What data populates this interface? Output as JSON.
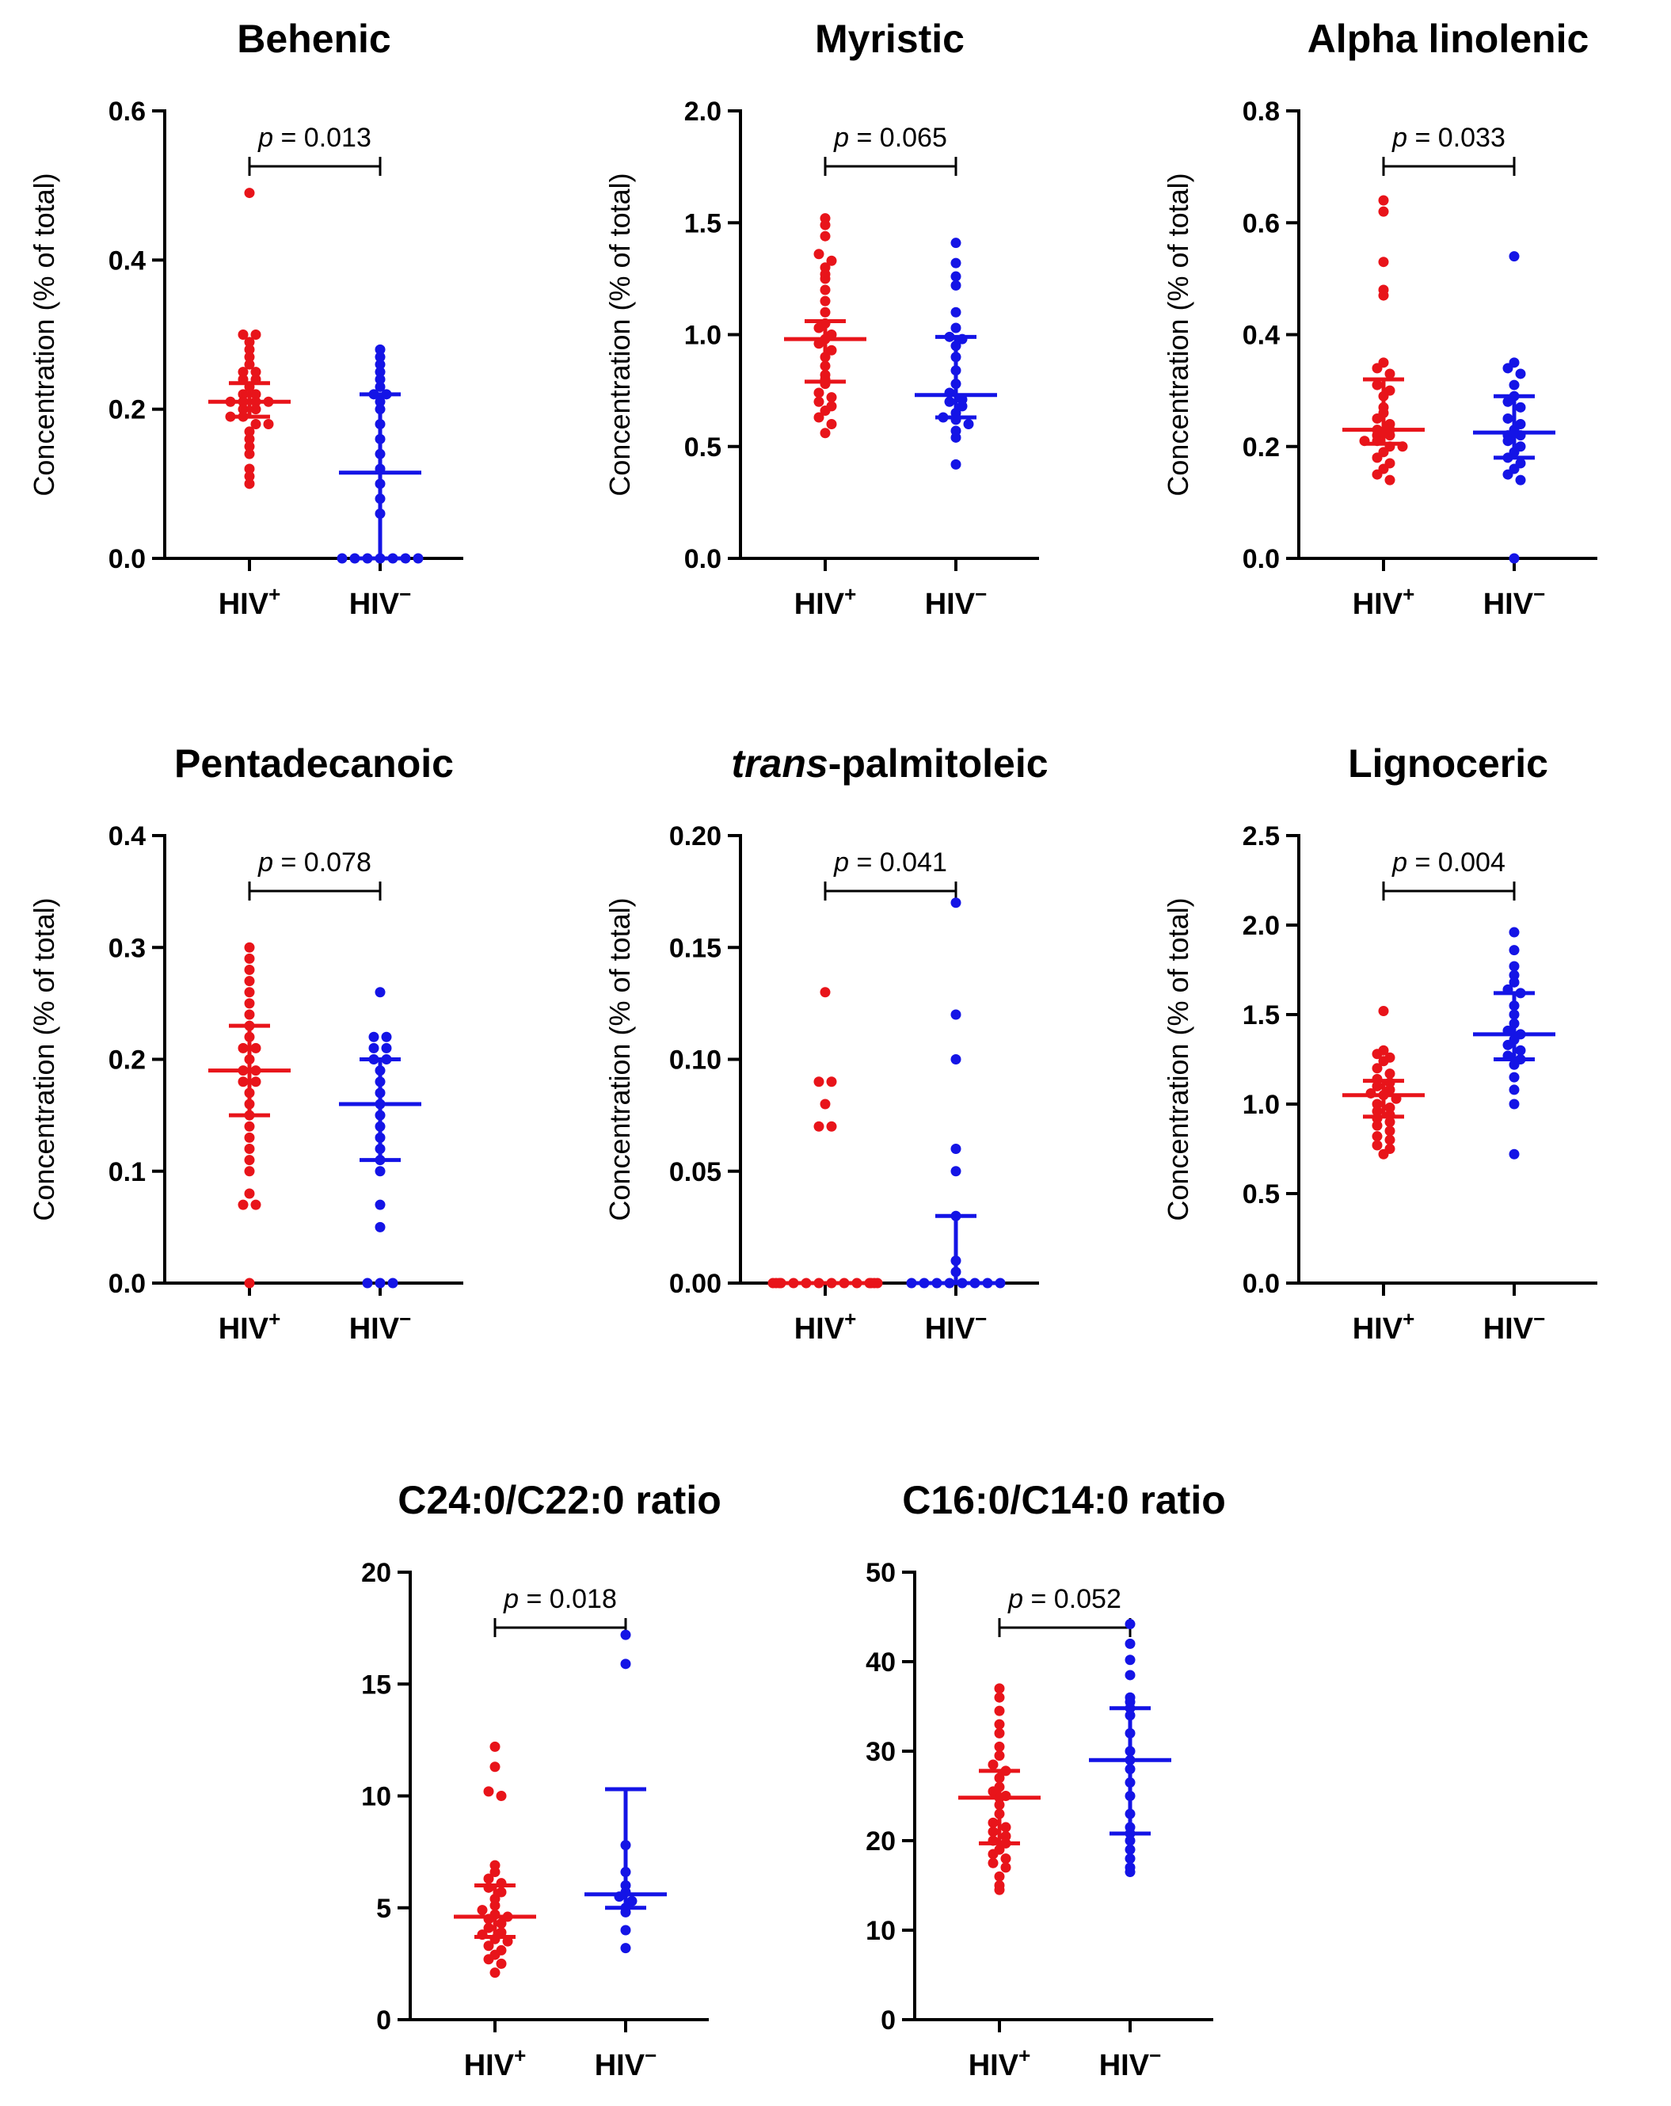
{
  "colors": {
    "hiv_pos": "#e8141a",
    "hiv_neg": "#1414e6",
    "axis": "#000000"
  },
  "chart_data": [
    {
      "type": "scatter",
      "title": "Behenic",
      "ylabel": "Concentration (% of total)",
      "ylim": [
        0,
        0.6
      ],
      "yticks": [
        0.0,
        0.2,
        0.4,
        0.6
      ],
      "ytick_labels": [
        "0.0",
        "0.2",
        "0.4",
        "0.6"
      ],
      "categories": [
        "HIV+",
        "HIV−"
      ],
      "p_text": "p = 0.013",
      "groups": [
        {
          "name": "HIV+",
          "median": 0.21,
          "q1": 0.19,
          "q3": 0.235,
          "values": [
            0.49,
            0.3,
            0.3,
            0.29,
            0.28,
            0.27,
            0.26,
            0.25,
            0.25,
            0.24,
            0.24,
            0.23,
            0.22,
            0.22,
            0.21,
            0.21,
            0.21,
            0.21,
            0.2,
            0.2,
            0.19,
            0.19,
            0.18,
            0.18,
            0.17,
            0.16,
            0.15,
            0.14,
            0.12,
            0.11,
            0.1
          ]
        },
        {
          "name": "HIV−",
          "median": 0.115,
          "q1": 0.0,
          "q3": 0.22,
          "values": [
            0.28,
            0.27,
            0.26,
            0.25,
            0.24,
            0.23,
            0.22,
            0.22,
            0.21,
            0.2,
            0.18,
            0.16,
            0.14,
            0.12,
            0.1,
            0.08,
            0.06,
            0.0,
            0.0,
            0.0,
            0.0,
            0.0,
            0.0,
            0.0
          ]
        }
      ]
    },
    {
      "type": "scatter",
      "title": "Myristic",
      "ylabel": "Concentration (% of total)",
      "ylim": [
        0,
        2.0
      ],
      "yticks": [
        0.0,
        0.5,
        1.0,
        1.5,
        2.0
      ],
      "ytick_labels": [
        "0.0",
        "0.5",
        "1.0",
        "1.5",
        "2.0"
      ],
      "categories": [
        "HIV+",
        "HIV−"
      ],
      "p_text": "p = 0.065",
      "groups": [
        {
          "name": "HIV+",
          "median": 0.98,
          "q1": 0.79,
          "q3": 1.06,
          "values": [
            1.52,
            1.49,
            1.44,
            1.36,
            1.33,
            1.3,
            1.27,
            1.25,
            1.2,
            1.15,
            1.1,
            1.05,
            1.03,
            1.0,
            0.98,
            0.96,
            0.93,
            0.9,
            0.86,
            0.82,
            0.8,
            0.78,
            0.74,
            0.72,
            0.7,
            0.68,
            0.66,
            0.63,
            0.6,
            0.56
          ]
        },
        {
          "name": "HIV−",
          "median": 0.73,
          "q1": 0.63,
          "q3": 0.99,
          "values": [
            1.41,
            1.32,
            1.26,
            1.22,
            1.1,
            1.03,
            0.99,
            0.98,
            0.95,
            0.9,
            0.84,
            0.78,
            0.74,
            0.71,
            0.7,
            0.68,
            0.65,
            0.63,
            0.62,
            0.6,
            0.57,
            0.54,
            0.42
          ]
        }
      ]
    },
    {
      "type": "scatter",
      "title": "Alpha linolenic",
      "ylabel": "Concentration (% of total)",
      "ylim": [
        0,
        0.8
      ],
      "yticks": [
        0.0,
        0.2,
        0.4,
        0.6,
        0.8
      ],
      "ytick_labels": [
        "0.0",
        "0.2",
        "0.4",
        "0.6",
        "0.8"
      ],
      "categories": [
        "HIV+",
        "HIV−"
      ],
      "p_text": "p = 0.033",
      "groups": [
        {
          "name": "HIV+",
          "median": 0.23,
          "q1": 0.205,
          "q3": 0.32,
          "values": [
            0.64,
            0.62,
            0.53,
            0.48,
            0.47,
            0.35,
            0.34,
            0.33,
            0.31,
            0.3,
            0.29,
            0.27,
            0.26,
            0.25,
            0.24,
            0.23,
            0.23,
            0.22,
            0.22,
            0.21,
            0.21,
            0.2,
            0.2,
            0.19,
            0.18,
            0.17,
            0.16,
            0.15,
            0.14
          ]
        },
        {
          "name": "HIV−",
          "median": 0.225,
          "q1": 0.18,
          "q3": 0.29,
          "values": [
            0.54,
            0.35,
            0.34,
            0.33,
            0.31,
            0.29,
            0.28,
            0.27,
            0.25,
            0.24,
            0.23,
            0.22,
            0.22,
            0.21,
            0.2,
            0.19,
            0.18,
            0.17,
            0.16,
            0.15,
            0.14,
            0.0
          ]
        }
      ]
    },
    {
      "type": "scatter",
      "title": "Pentadecanoic",
      "ylabel": "Concentration (% of total)",
      "ylim": [
        0,
        0.4
      ],
      "yticks": [
        0.0,
        0.1,
        0.2,
        0.3,
        0.4
      ],
      "ytick_labels": [
        "0.0",
        "0.1",
        "0.2",
        "0.3",
        "0.4"
      ],
      "categories": [
        "HIV+",
        "HIV−"
      ],
      "p_text": "p = 0.078",
      "groups": [
        {
          "name": "HIV+",
          "median": 0.19,
          "q1": 0.15,
          "q3": 0.23,
          "values": [
            0.3,
            0.29,
            0.28,
            0.27,
            0.26,
            0.25,
            0.24,
            0.23,
            0.22,
            0.21,
            0.21,
            0.2,
            0.19,
            0.19,
            0.18,
            0.18,
            0.17,
            0.16,
            0.15,
            0.14,
            0.13,
            0.12,
            0.11,
            0.1,
            0.08,
            0.07,
            0.07,
            0.0
          ]
        },
        {
          "name": "HIV−",
          "median": 0.16,
          "q1": 0.11,
          "q3": 0.2,
          "values": [
            0.26,
            0.22,
            0.22,
            0.21,
            0.21,
            0.2,
            0.2,
            0.19,
            0.18,
            0.17,
            0.16,
            0.15,
            0.14,
            0.13,
            0.12,
            0.11,
            0.1,
            0.07,
            0.05,
            0.0,
            0.0,
            0.0
          ]
        }
      ]
    },
    {
      "type": "scatter",
      "title_italic": "trans",
      "title_rest": "-palmitoleic",
      "ylabel": "Concentration (% of total)",
      "ylim": [
        0,
        0.2
      ],
      "yticks": [
        0.0,
        0.05,
        0.1,
        0.15,
        0.2
      ],
      "ytick_labels": [
        "0.00",
        "0.05",
        "0.10",
        "0.15",
        "0.20"
      ],
      "categories": [
        "HIV+",
        "HIV−"
      ],
      "p_text": "p = 0.041",
      "groups": [
        {
          "name": "HIV+",
          "median": 0.0,
          "q1": 0.0,
          "q3": 0.0,
          "values": [
            0.13,
            0.09,
            0.09,
            0.08,
            0.07,
            0.07,
            0.0,
            0.0,
            0.0,
            0.0,
            0.0,
            0.0,
            0.0,
            0.0,
            0.0,
            0.0,
            0.0,
            0.0,
            0.0,
            0.0
          ]
        },
        {
          "name": "HIV−",
          "median": 0.0,
          "q1": 0.0,
          "q3": 0.03,
          "values": [
            0.17,
            0.12,
            0.1,
            0.06,
            0.05,
            0.03,
            0.01,
            0.005,
            0.0,
            0.0,
            0.0,
            0.0,
            0.0,
            0.0,
            0.0,
            0.0
          ]
        }
      ]
    },
    {
      "type": "scatter",
      "title": "Lignoceric",
      "ylabel": "Concentration (% of total)",
      "ylim": [
        0,
        2.5
      ],
      "yticks": [
        0.0,
        0.5,
        1.0,
        1.5,
        2.0,
        2.5
      ],
      "ytick_labels": [
        "0.0",
        "0.5",
        "1.0",
        "1.5",
        "2.0",
        "2.5"
      ],
      "categories": [
        "HIV+",
        "HIV−"
      ],
      "p_text": "p = 0.004",
      "groups": [
        {
          "name": "HIV+",
          "median": 1.05,
          "q1": 0.93,
          "q3": 1.13,
          "values": [
            1.52,
            1.3,
            1.28,
            1.26,
            1.24,
            1.2,
            1.17,
            1.14,
            1.12,
            1.1,
            1.08,
            1.06,
            1.05,
            1.03,
            1.0,
            0.98,
            0.96,
            0.94,
            0.92,
            0.9,
            0.88,
            0.85,
            0.82,
            0.8,
            0.77,
            0.75,
            0.72
          ]
        },
        {
          "name": "HIV−",
          "median": 1.39,
          "q1": 1.25,
          "q3": 1.62,
          "values": [
            1.96,
            1.86,
            1.77,
            1.72,
            1.68,
            1.64,
            1.62,
            1.55,
            1.5,
            1.45,
            1.41,
            1.39,
            1.36,
            1.33,
            1.3,
            1.27,
            1.25,
            1.22,
            1.15,
            1.08,
            1.0,
            0.72
          ]
        }
      ]
    },
    {
      "type": "scatter",
      "title": "C24:0/C22:0 ratio",
      "ylabel": "",
      "ylim": [
        0,
        20
      ],
      "yticks": [
        0,
        5,
        10,
        15,
        20
      ],
      "ytick_labels": [
        "0",
        "5",
        "10",
        "15",
        "20"
      ],
      "categories": [
        "HIV+",
        "HIV−"
      ],
      "p_text": "p = 0.018",
      "groups": [
        {
          "name": "HIV+",
          "median": 4.6,
          "q1": 3.7,
          "q3": 6.0,
          "values": [
            12.2,
            11.3,
            10.2,
            10.0,
            6.9,
            6.6,
            6.3,
            6.1,
            5.9,
            5.7,
            5.4,
            5.1,
            4.9,
            4.7,
            4.6,
            4.5,
            4.3,
            4.1,
            3.9,
            3.8,
            3.6,
            3.5,
            3.3,
            3.1,
            2.9,
            2.7,
            2.5,
            2.1
          ]
        },
        {
          "name": "HIV−",
          "median": 5.6,
          "q1": 5.0,
          "q3": 10.3,
          "values": [
            17.2,
            15.9,
            7.8,
            6.6,
            6.0,
            5.7,
            5.5,
            5.3,
            5.0,
            4.8,
            4.0,
            3.2
          ]
        }
      ]
    },
    {
      "type": "scatter",
      "title": "C16:0/C14:0 ratio",
      "ylabel": "",
      "ylim": [
        0,
        50
      ],
      "yticks": [
        0,
        10,
        20,
        30,
        40,
        50
      ],
      "ytick_labels": [
        "0",
        "10",
        "20",
        "30",
        "40",
        "50"
      ],
      "categories": [
        "HIV+",
        "HIV−"
      ],
      "p_text": "p = 0.052",
      "groups": [
        {
          "name": "HIV+",
          "median": 24.8,
          "q1": 19.7,
          "q3": 27.8,
          "values": [
            37.0,
            36.0,
            34.5,
            33.0,
            32.0,
            30.5,
            29.5,
            28.5,
            27.8,
            27.0,
            26.0,
            25.5,
            25.0,
            24.8,
            24.0,
            23.0,
            22.0,
            21.5,
            21.0,
            20.5,
            20.0,
            19.7,
            19.0,
            18.5,
            18.0,
            17.5,
            17.0,
            16.0,
            15.0,
            14.5
          ]
        },
        {
          "name": "HIV−",
          "median": 29.0,
          "q1": 20.8,
          "q3": 34.8,
          "values": [
            44.2,
            42.0,
            40.2,
            38.5,
            36.0,
            35.5,
            34.8,
            34.0,
            32.0,
            30.0,
            29.0,
            28.0,
            26.5,
            25.0,
            23.0,
            21.5,
            20.8,
            20.0,
            19.0,
            18.0,
            17.0,
            16.5
          ]
        }
      ]
    }
  ]
}
